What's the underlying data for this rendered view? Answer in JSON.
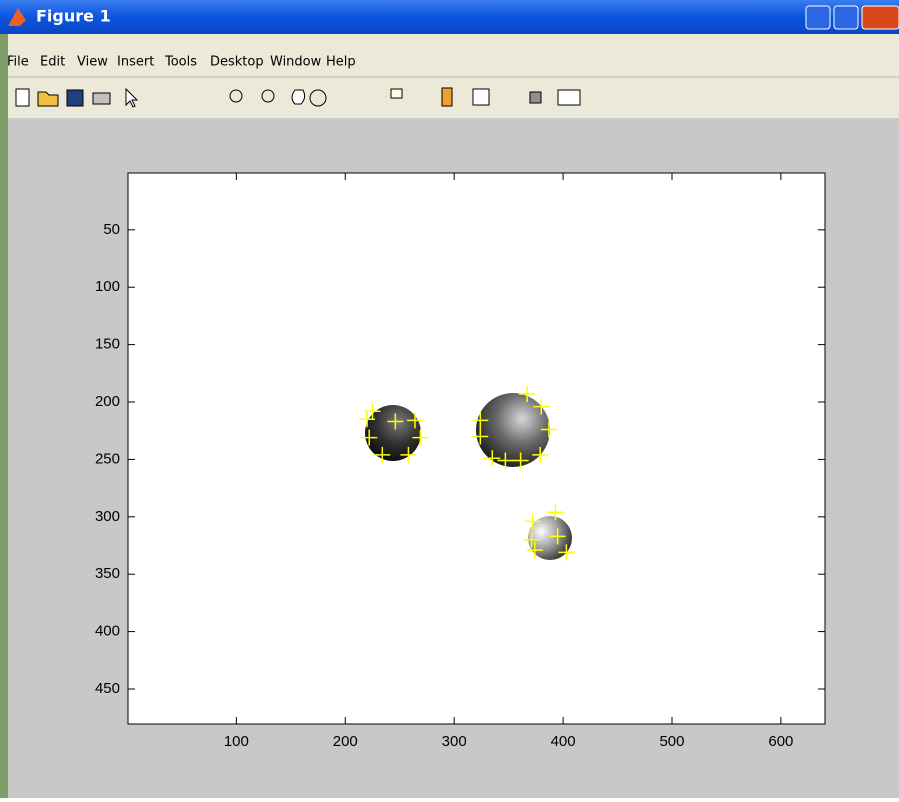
{
  "window": {
    "title": "Figure 1",
    "menu": [
      "File",
      "Edit",
      "View",
      "Insert",
      "Tools",
      "Desktop",
      "Window",
      "Help"
    ]
  },
  "chart_data": {
    "type": "scatter",
    "marker": "+",
    "color": "#ffff00",
    "x": [
      225,
      220,
      222,
      234,
      246,
      258,
      264,
      269,
      367,
      380,
      387,
      379,
      361,
      347,
      335,
      324,
      324,
      393,
      372,
      395,
      371,
      374,
      403
    ],
    "values": [
      208,
      215,
      231,
      246,
      217,
      246,
      216,
      231,
      193,
      204,
      224,
      246,
      251,
      251,
      249,
      230,
      216,
      296,
      304,
      317,
      320,
      329,
      331
    ],
    "xlim": [
      0.5,
      640.5
    ],
    "ylim": [
      0.5,
      480.5
    ],
    "y_reversed": true,
    "xticks": [
      100,
      200,
      300,
      400,
      500,
      600
    ],
    "yticks": [
      50,
      100,
      150,
      200,
      250,
      300,
      350,
      400,
      450
    ]
  }
}
